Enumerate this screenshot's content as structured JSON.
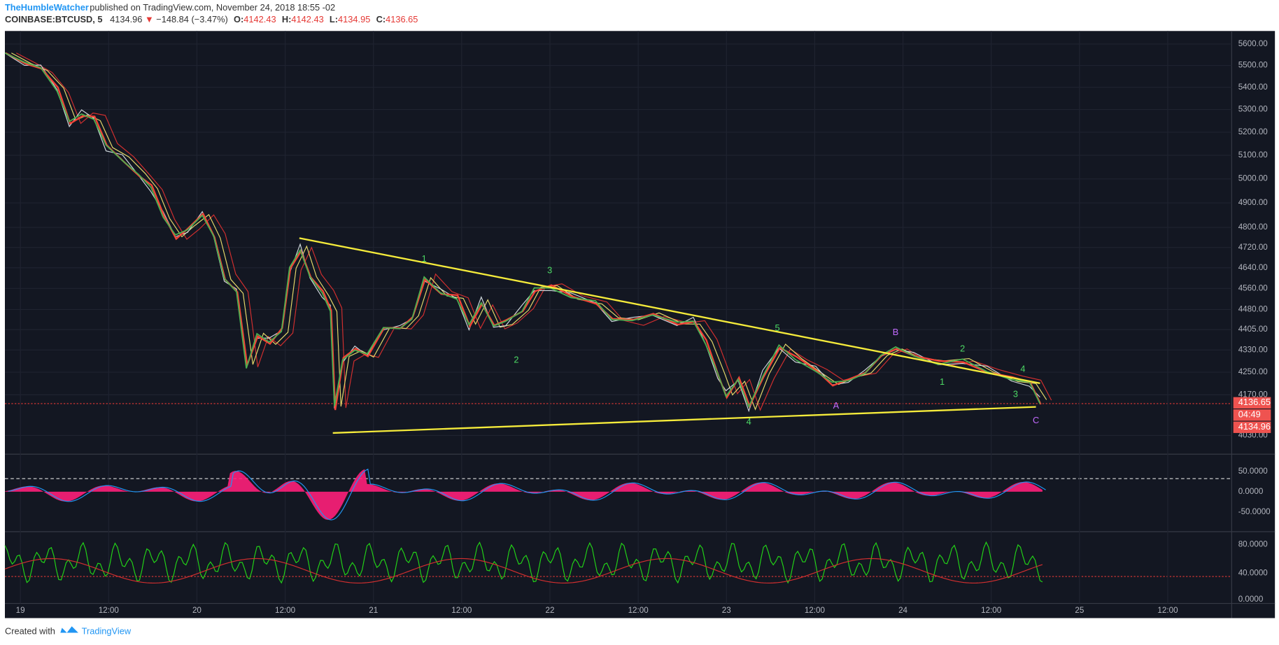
{
  "header": {
    "author": "TheHumbleWatcher",
    "published": "published on TradingView.com, November 24, 2018 18:55 -02",
    "symbol": "COINBASE:BTCUSD, 5",
    "last": "4134.96",
    "arrow": "▼",
    "change": "−148.84 (−3.47%)",
    "open_label": "O:",
    "open": "4142.43",
    "high_label": "H:",
    "high": "4142.43",
    "low_label": "L:",
    "low": "4134.95",
    "close_label": "C:",
    "close": "4136.65"
  },
  "price_axis": {
    "ticks": [
      "5600.00",
      "5500.00",
      "5400.00",
      "5300.00",
      "5200.00",
      "5100.00",
      "5000.00",
      "4900.00",
      "4800.00",
      "4720.00",
      "4640.00",
      "4560.00",
      "4480.00",
      "4405.00",
      "4330.00",
      "4250.00",
      "4170.00",
      "4030.00"
    ],
    "markers": [
      "4136.65",
      "04:49",
      "4134.96"
    ]
  },
  "time_axis": [
    "19",
    "12:00",
    "20",
    "12:00",
    "21",
    "12:00",
    "22",
    "12:00",
    "23",
    "12:00",
    "24",
    "12:00",
    "25",
    "12:00"
  ],
  "osc1_axis": [
    "50.0000",
    "0.0000",
    "-50.0000"
  ],
  "osc2_axis": [
    "80.0000",
    "40.0000",
    "0.0000"
  ],
  "wave_labels": [
    "1",
    "3",
    "2",
    "5",
    "4",
    "B",
    "A",
    "C",
    "1",
    "2",
    "3",
    "4"
  ],
  "footer": {
    "created": "Created with",
    "brand": "TradingView"
  }
}
